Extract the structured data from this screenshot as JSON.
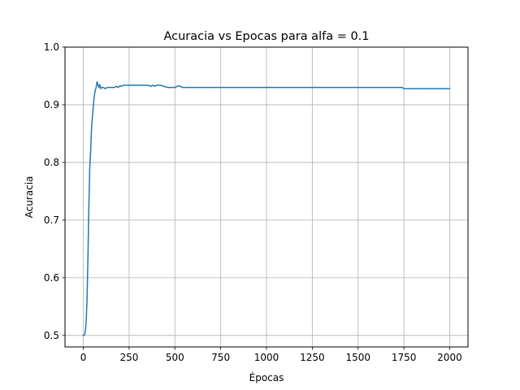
{
  "chart_data": {
    "type": "line",
    "title": "Acuracia vs Epocas para alfa = 0.1",
    "xlabel": "Épocas",
    "ylabel": "Acuracia",
    "xlim": [
      -100,
      2100
    ],
    "ylim": [
      0.48,
      1.0
    ],
    "xticks": [
      0,
      250,
      500,
      750,
      1000,
      1250,
      1500,
      1750,
      2000
    ],
    "yticks": [
      0.5,
      0.6,
      0.7,
      0.8,
      0.9,
      1.0
    ],
    "xtick_labels": [
      "0",
      "250",
      "500",
      "750",
      "1000",
      "1250",
      "1500",
      "1750",
      "2000"
    ],
    "ytick_labels": [
      "0.5",
      "0.6",
      "0.7",
      "0.8",
      "0.9",
      "1.0"
    ],
    "grid": true,
    "line_color": "#1f77b4",
    "series": [
      {
        "name": "",
        "x": [
          0,
          5,
          10,
          15,
          20,
          25,
          30,
          35,
          40,
          45,
          50,
          55,
          60,
          65,
          70,
          75,
          80,
          85,
          90,
          95,
          100,
          105,
          110,
          120,
          130,
          140,
          150,
          160,
          170,
          180,
          190,
          200,
          210,
          220,
          230,
          250,
          300,
          350,
          370,
          380,
          390,
          400,
          420,
          440,
          460,
          480,
          500,
          520,
          530,
          540,
          600,
          800,
          1000,
          1200,
          1400,
          1600,
          1740,
          1750,
          1800,
          2000
        ],
        "y": [
          0.5,
          0.5,
          0.505,
          0.52,
          0.56,
          0.63,
          0.72,
          0.79,
          0.82,
          0.86,
          0.88,
          0.9,
          0.915,
          0.925,
          0.93,
          0.94,
          0.935,
          0.93,
          0.935,
          0.928,
          0.93,
          0.93,
          0.93,
          0.928,
          0.93,
          0.93,
          0.93,
          0.93,
          0.93,
          0.932,
          0.93,
          0.933,
          0.932,
          0.934,
          0.934,
          0.934,
          0.934,
          0.934,
          0.932,
          0.934,
          0.932,
          0.934,
          0.934,
          0.932,
          0.93,
          0.93,
          0.93,
          0.933,
          0.932,
          0.93,
          0.93,
          0.93,
          0.93,
          0.93,
          0.93,
          0.93,
          0.93,
          0.928,
          0.928,
          0.928
        ]
      }
    ]
  }
}
